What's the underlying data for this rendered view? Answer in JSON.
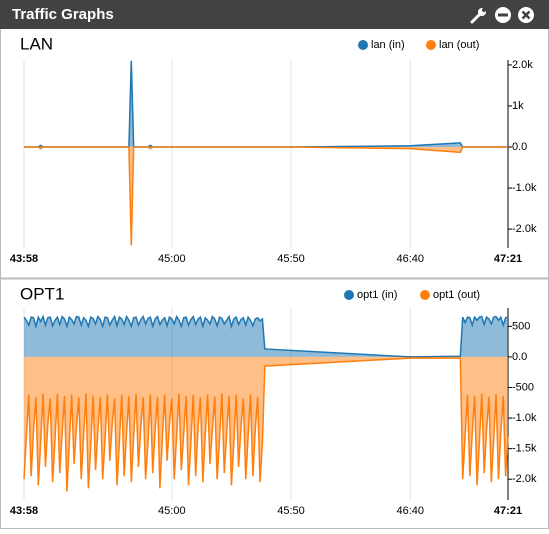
{
  "header": {
    "title": "Traffic Graphs"
  },
  "chart_data": [
    {
      "type": "area",
      "title": "LAN",
      "x": [
        2638,
        2644,
        2645,
        2646,
        2680,
        2682,
        2683,
        2684,
        2690,
        2691,
        2692,
        2750,
        2800,
        2821,
        2822,
        2841
      ],
      "series": [
        {
          "name": "lan (in)",
          "color": "#1f77b4",
          "values": [
            0,
            0,
            40,
            0,
            0,
            0,
            2100,
            0,
            0,
            40,
            0,
            0,
            30,
            100,
            0,
            0
          ]
        },
        {
          "name": "lan (out)",
          "color": "#ff7f0e",
          "values": [
            0,
            0,
            -40,
            0,
            0,
            0,
            -2400,
            0,
            0,
            -40,
            0,
            0,
            -40,
            -130,
            0,
            0
          ]
        }
      ],
      "xlim": [
        2638,
        2841
      ],
      "xticks": [
        {
          "value": 2638,
          "label": "43:58"
        },
        {
          "value": 2700,
          "label": "45:00"
        },
        {
          "value": 2750,
          "label": "45:50"
        },
        {
          "value": 2800,
          "label": "46:40"
        },
        {
          "value": 2841,
          "label": "47:21"
        }
      ],
      "ylim": [
        -2460,
        2120
      ],
      "yticks": [
        {
          "value": 2000,
          "label": "2.0k"
        },
        {
          "value": 1000,
          "label": "1k"
        },
        {
          "value": 0,
          "label": "0.0"
        },
        {
          "value": -1000,
          "label": "-1.0k"
        },
        {
          "value": -2000,
          "label": "-2.0k"
        }
      ],
      "grid": true,
      "legend": "top-right"
    },
    {
      "type": "area",
      "title": "OPT1",
      "x": [
        2638,
        2639,
        2640,
        2641,
        2642,
        2643,
        2644,
        2645,
        2646,
        2647,
        2648,
        2649,
        2650,
        2651,
        2652,
        2653,
        2654,
        2655,
        2656,
        2657,
        2658,
        2659,
        2660,
        2661,
        2662,
        2663,
        2664,
        2665,
        2666,
        2667,
        2668,
        2669,
        2670,
        2671,
        2672,
        2673,
        2674,
        2675,
        2676,
        2677,
        2678,
        2679,
        2680,
        2681,
        2682,
        2683,
        2684,
        2685,
        2686,
        2687,
        2688,
        2689,
        2690,
        2691,
        2692,
        2693,
        2694,
        2695,
        2696,
        2697,
        2698,
        2699,
        2700,
        2701,
        2702,
        2703,
        2704,
        2705,
        2706,
        2707,
        2708,
        2709,
        2710,
        2711,
        2712,
        2713,
        2714,
        2715,
        2716,
        2717,
        2718,
        2719,
        2720,
        2721,
        2722,
        2723,
        2724,
        2725,
        2726,
        2727,
        2728,
        2729,
        2730,
        2731,
        2732,
        2733,
        2734,
        2735,
        2736,
        2737,
        2738,
        2739,
        2800,
        2821,
        2822,
        2823,
        2824,
        2825,
        2826,
        2827,
        2828,
        2829,
        2830,
        2831,
        2832,
        2833,
        2834,
        2835,
        2836,
        2837,
        2838,
        2839,
        2840,
        2841
      ],
      "series": [
        {
          "name": "opt1 (in)",
          "color": "#1f77b4",
          "values": [
            650,
            600,
            520,
            650,
            640,
            500,
            650,
            580,
            660,
            520,
            640,
            650,
            510,
            600,
            650,
            530,
            660,
            620,
            500,
            650,
            610,
            540,
            660,
            650,
            520,
            640,
            600,
            500,
            650,
            630,
            540,
            660,
            610,
            500,
            650,
            640,
            520,
            600,
            660,
            510,
            650,
            620,
            530,
            660,
            600,
            500,
            640,
            650,
            520,
            610,
            660,
            540,
            630,
            650,
            500,
            620,
            660,
            530,
            600,
            640,
            510,
            650,
            620,
            540,
            660,
            600,
            500,
            640,
            650,
            520,
            610,
            660,
            530,
            620,
            650,
            500,
            640,
            600,
            540,
            660,
            620,
            510,
            650,
            630,
            540,
            600,
            660,
            500,
            620,
            650,
            530,
            610,
            640,
            520,
            650,
            600,
            510,
            620,
            640,
            590,
            620,
            130,
            0,
            10,
            650,
            560,
            650,
            640,
            520,
            650,
            600,
            650,
            660,
            530,
            650,
            620,
            540,
            650,
            660,
            600,
            650,
            520,
            640,
            650
          ]
        },
        {
          "name": "opt1 (out)",
          "color": "#ff7f0e",
          "values": [
            -2000,
            -1300,
            -620,
            -1950,
            -1200,
            -650,
            -2100,
            -1400,
            -600,
            -1800,
            -1100,
            -680,
            -2050,
            -1350,
            -610,
            -1900,
            -1250,
            -640,
            -2200,
            -1400,
            -620,
            -1750,
            -1150,
            -660,
            -2000,
            -1300,
            -600,
            -2150,
            -1450,
            -630,
            -1850,
            -1200,
            -650,
            -2000,
            -1350,
            -610,
            -1700,
            -1100,
            -680,
            -2100,
            -1400,
            -620,
            -1950,
            -1250,
            -640,
            -2050,
            -1300,
            -600,
            -1800,
            -1150,
            -660,
            -2000,
            -1400,
            -610,
            -1900,
            -1200,
            -650,
            -2150,
            -1350,
            -620,
            -1700,
            -1100,
            -680,
            -2000,
            -1300,
            -600,
            -1850,
            -1250,
            -640,
            -2100,
            -1400,
            -620,
            -1950,
            -1150,
            -660,
            -2050,
            -1300,
            -610,
            -1750,
            -1200,
            -650,
            -2000,
            -1350,
            -600,
            -1900,
            -1250,
            -640,
            -2100,
            -1400,
            -620,
            -1800,
            -1150,
            -680,
            -2000,
            -1300,
            -610,
            -1950,
            -1200,
            -650,
            -2050,
            -1400,
            -150,
            -20,
            -20,
            -2000,
            -1300,
            -620,
            -1950,
            -1250,
            -640,
            -2100,
            -1400,
            -600,
            -1900,
            -1200,
            -650,
            -2050,
            -1350,
            -610,
            -2000,
            -1250,
            -640,
            -1950,
            -1300
          ]
        }
      ],
      "xlim": [
        2638,
        2841
      ],
      "xticks": [
        {
          "value": 2638,
          "label": "43:58"
        },
        {
          "value": 2700,
          "label": "45:00"
        },
        {
          "value": 2750,
          "label": "45:50"
        },
        {
          "value": 2800,
          "label": "46:40"
        },
        {
          "value": 2841,
          "label": "47:21"
        }
      ],
      "ylim": [
        -2340,
        800
      ],
      "yticks": [
        500,
        {
          "value": 0,
          "label": "0.0"
        },
        {
          "value": -500,
          "label": "-500"
        },
        {
          "value": -1000,
          "label": "-1.0k"
        },
        {
          "value": -1500,
          "label": "-1.5k"
        },
        {
          "value": -2000,
          "label": "-2.0k"
        }
      ],
      "grid": true,
      "legend": "top-right"
    }
  ]
}
